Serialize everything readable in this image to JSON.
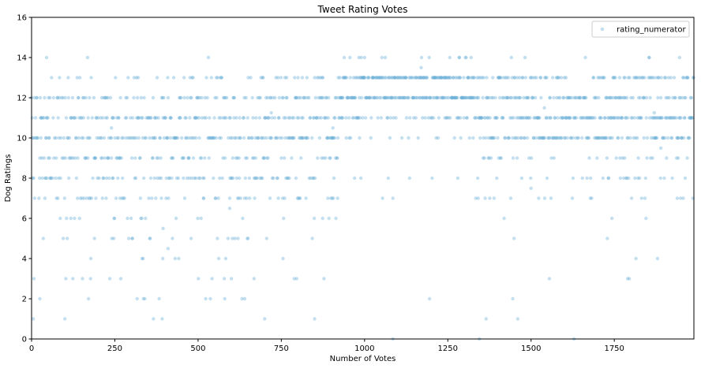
{
  "chart_data": {
    "type": "scatter",
    "title": "Tweet Rating Votes",
    "xlabel": "Number of Votes",
    "ylabel": "Dog Ratings",
    "xlim": [
      0,
      1989
    ],
    "ylim": [
      0,
      16
    ],
    "xticks": [
      0,
      250,
      500,
      750,
      1000,
      1250,
      1500,
      1750
    ],
    "yticks": [
      0,
      2,
      4,
      6,
      8,
      10,
      12,
      14,
      16
    ],
    "grid": false,
    "legend_position": "top-right",
    "series": [
      {
        "name": "rating_numerator",
        "color": "#6baed6",
        "alpha": 0.4,
        "marker": "circle",
        "n_points": 1989,
        "rating_levels": [
          0,
          1,
          2,
          3,
          4,
          5,
          6,
          7,
          8,
          9,
          10,
          11,
          12,
          13,
          14
        ],
        "index_segments": [
          {
            "x_range": [
              0,
              920
            ],
            "weights": {
              "0": 0,
              "1": 3,
              "2": 10,
              "3": 18,
              "4": 10,
              "5": 25,
              "6": 20,
              "7": 45,
              "8": 75,
              "9": 95,
              "10": 175,
              "11": 150,
              "12": 120,
              "13": 45,
              "14": 1
            }
          },
          {
            "x_range": [
              921,
              1330
            ],
            "weights": {
              "0": 1,
              "1": 0,
              "2": 1,
              "3": 1,
              "4": 1,
              "5": 1,
              "6": 0,
              "7": 1,
              "8": 3,
              "9": 3,
              "10": 25,
              "11": 55,
              "12": 150,
              "13": 135,
              "14": 25
            }
          },
          {
            "x_range": [
              1331,
              1989
            ],
            "weights": {
              "0": 1,
              "1": 1,
              "2": 1,
              "3": 3,
              "4": 3,
              "5": 3,
              "6": 5,
              "7": 25,
              "8": 30,
              "9": 40,
              "10": 140,
              "11": 160,
              "12": 140,
              "13": 90,
              "14": 18
            }
          }
        ],
        "extra_points": [
          {
            "x": 5,
            "y": 1
          },
          {
            "x": 25,
            "y": 2
          },
          {
            "x": 45,
            "y": 14
          },
          {
            "x": 700,
            "y": 1
          },
          {
            "x": 850,
            "y": 1
          },
          {
            "x": 1085,
            "y": 0
          },
          {
            "x": 1365,
            "y": 1
          },
          {
            "x": 1345,
            "y": 0
          },
          {
            "x": 1500,
            "y": 7.5
          },
          {
            "x": 1540,
            "y": 11.5
          },
          {
            "x": 1170,
            "y": 13.5
          },
          {
            "x": 720,
            "y": 11.25
          },
          {
            "x": 240,
            "y": 10.5
          },
          {
            "x": 410,
            "y": 4.5
          },
          {
            "x": 595,
            "y": 6.5
          },
          {
            "x": 905,
            "y": 10.5
          },
          {
            "x": 1870,
            "y": 11.25
          },
          {
            "x": 1890,
            "y": 9.5
          },
          {
            "x": 395,
            "y": 5.5
          },
          {
            "x": 1555,
            "y": 3
          },
          {
            "x": 1790,
            "y": 3
          },
          {
            "x": 1445,
            "y": 2
          },
          {
            "x": 1195,
            "y": 2
          },
          {
            "x": 340,
            "y": 2
          },
          {
            "x": 640,
            "y": 2
          },
          {
            "x": 580,
            "y": 2
          }
        ]
      }
    ]
  }
}
